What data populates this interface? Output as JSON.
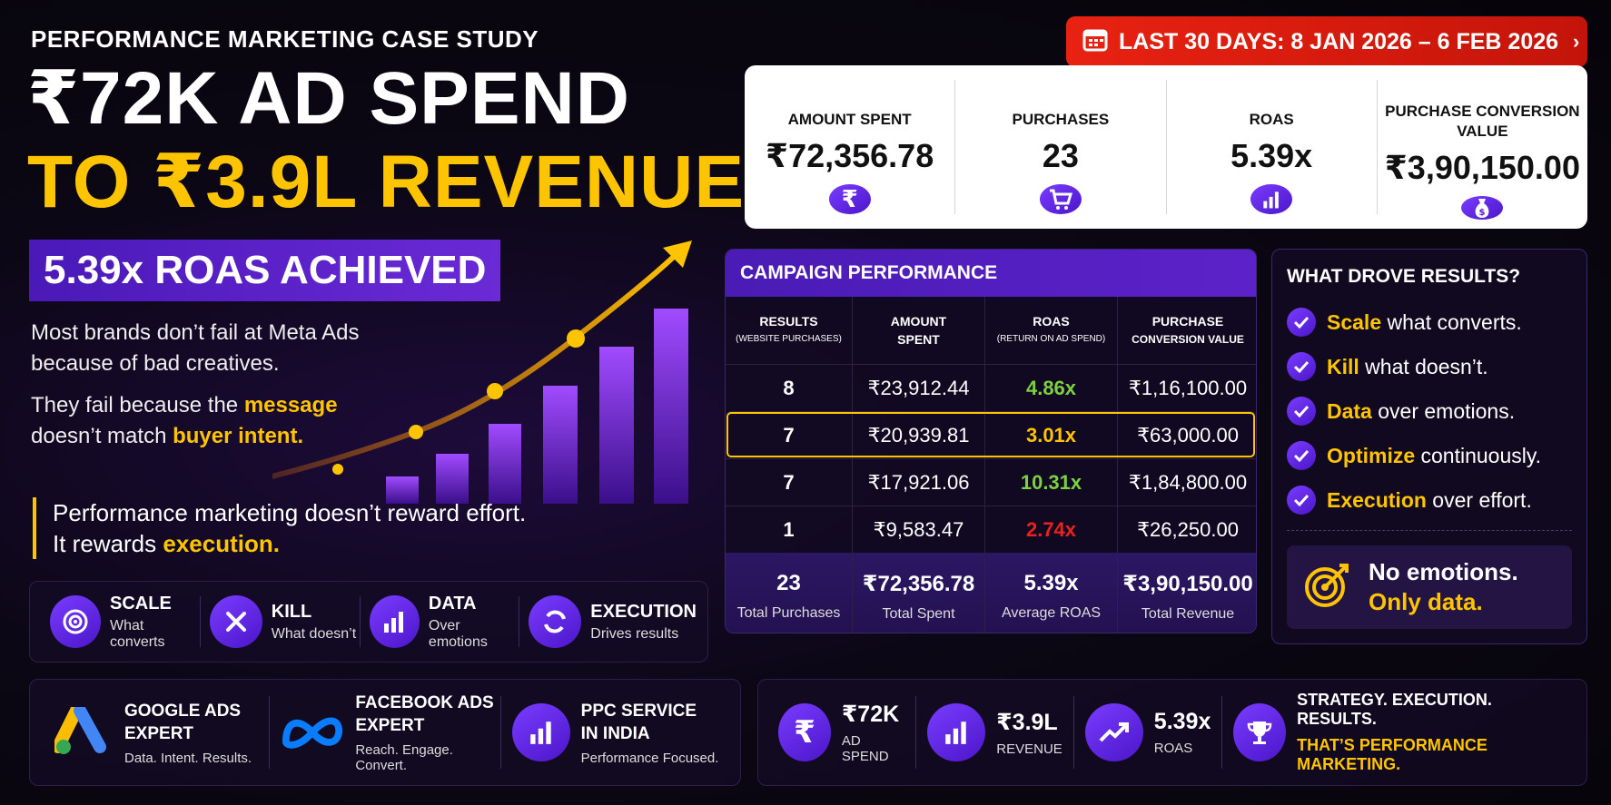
{
  "header": {
    "case_title": "PERFORMANCE MARKETING CASE STUDY",
    "hero_line1": "₹72K AD SPEND",
    "hero_line2": "TO ₹3.9L REVENUE",
    "roas_badge": "5.39x ROAS ACHIEVED"
  },
  "intro": {
    "p1_line1": "Most brands don’t fail at Meta Ads",
    "p1_line2": "because of bad creatives.",
    "p2_a": "They fail because the ",
    "p2_b": "message",
    "p2_c": "doesn’t match ",
    "p2_d": "buyer intent.",
    "quote_line1": "Performance marketing doesn’t reward effort.",
    "quote_a": "It rewards ",
    "quote_b": "execution."
  },
  "tags": [
    {
      "title": "SCALE",
      "sub": "What converts",
      "icon": "target-icon"
    },
    {
      "title": "KILL",
      "sub": "What doesn’t",
      "icon": "close-icon"
    },
    {
      "title": "DATA",
      "sub": "Over emotions",
      "icon": "bar-chart-icon"
    },
    {
      "title": "EXECUTION",
      "sub": "Drives results",
      "icon": "cycle-icon"
    }
  ],
  "experts": [
    {
      "title1": "GOOGLE ADS",
      "title2": "EXPERT",
      "sub": "Data. Intent. Results.",
      "icon": "google-ads-logo"
    },
    {
      "title1": "FACEBOOK ADS",
      "title2": "EXPERT",
      "sub": "Reach. Engage. Convert.",
      "icon": "meta-logo"
    },
    {
      "title1": "PPC SERVICE",
      "title2": "IN INDIA",
      "sub": "Performance Focused.",
      "icon": "bar-chart-icon"
    }
  ],
  "date_banner": "LAST 30 DAYS: 8 JAN 2026 – 6 FEB 2026",
  "kpis": [
    {
      "label": "AMOUNT SPENT",
      "value": "₹72,356.78",
      "icon": "rupee-icon"
    },
    {
      "label": "PURCHASES",
      "value": "23",
      "icon": "cart-icon"
    },
    {
      "label": "ROAS",
      "value": "5.39x",
      "icon": "bar-chart-icon"
    },
    {
      "label": "PURCHASE CONVERSION VALUE",
      "value": "₹3,90,150.00",
      "icon": "money-bag-icon"
    }
  ],
  "campaign": {
    "title": "CAMPAIGN PERFORMANCE",
    "headers": [
      {
        "main": "RESULTS",
        "sub": "(WEBSITE PURCHASES)"
      },
      {
        "main": "AMOUNT",
        "sub2": "SPENT"
      },
      {
        "main": "ROAS",
        "sub": "(RETURN ON AD SPEND)"
      },
      {
        "main": "PURCHASE",
        "sub2": "CONVERSION VALUE"
      }
    ],
    "rows": [
      {
        "results": "8",
        "spent": "₹23,912.44",
        "roas": "4.86x",
        "roas_color": "#7bd13f",
        "value": "₹1,16,100.00"
      },
      {
        "results": "7",
        "spent": "₹20,939.81",
        "roas": "3.01x",
        "roas_color": "#ffc400",
        "value": "₹63,000.00"
      },
      {
        "results": "7",
        "spent": "₹17,921.06",
        "roas": "10.31x",
        "roas_color": "#7bd13f",
        "value": "₹1,84,800.00"
      },
      {
        "results": "1",
        "spent": "₹9,583.47",
        "roas": "2.74x",
        "roas_color": "#e8231b",
        "value": "₹26,250.00"
      }
    ],
    "totals": [
      {
        "value": "23",
        "label": "Total Purchases"
      },
      {
        "value": "₹72,356.78",
        "label": "Total Spent"
      },
      {
        "value": "5.39x",
        "label": "Average ROAS"
      },
      {
        "value": "₹3,90,150.00",
        "label": "Total Revenue"
      }
    ]
  },
  "drove": {
    "title": "WHAT DROVE RESULTS?",
    "items": [
      {
        "key": "Scale",
        "rest": " what converts."
      },
      {
        "key": "Kill",
        "rest": " what doesn’t."
      },
      {
        "key": "Data",
        "rest": " over emotions."
      },
      {
        "key": "Optimize",
        "rest": " continuously."
      },
      {
        "key": "Execution",
        "rest": " over effort."
      }
    ],
    "no_emotions": "No emotions.",
    "only_data": "Only data."
  },
  "metrics": [
    {
      "value": "₹72K",
      "label": "AD SPEND",
      "icon": "rupee-icon"
    },
    {
      "value": "₹3.9L",
      "label": "REVENUE",
      "icon": "bar-chart-icon"
    },
    {
      "value": "5.39x",
      "label": "ROAS",
      "icon": "trend-up-icon"
    }
  ],
  "strategy": {
    "line1": "STRATEGY. EXECUTION. RESULTS.",
    "line2": "THAT’S PERFORMANCE MARKETING.",
    "icon": "trophy-icon"
  },
  "colors": {
    "accent_yellow": "#ffc400",
    "brand_purple": "#5c22c9",
    "banner_red": "#e82212"
  }
}
